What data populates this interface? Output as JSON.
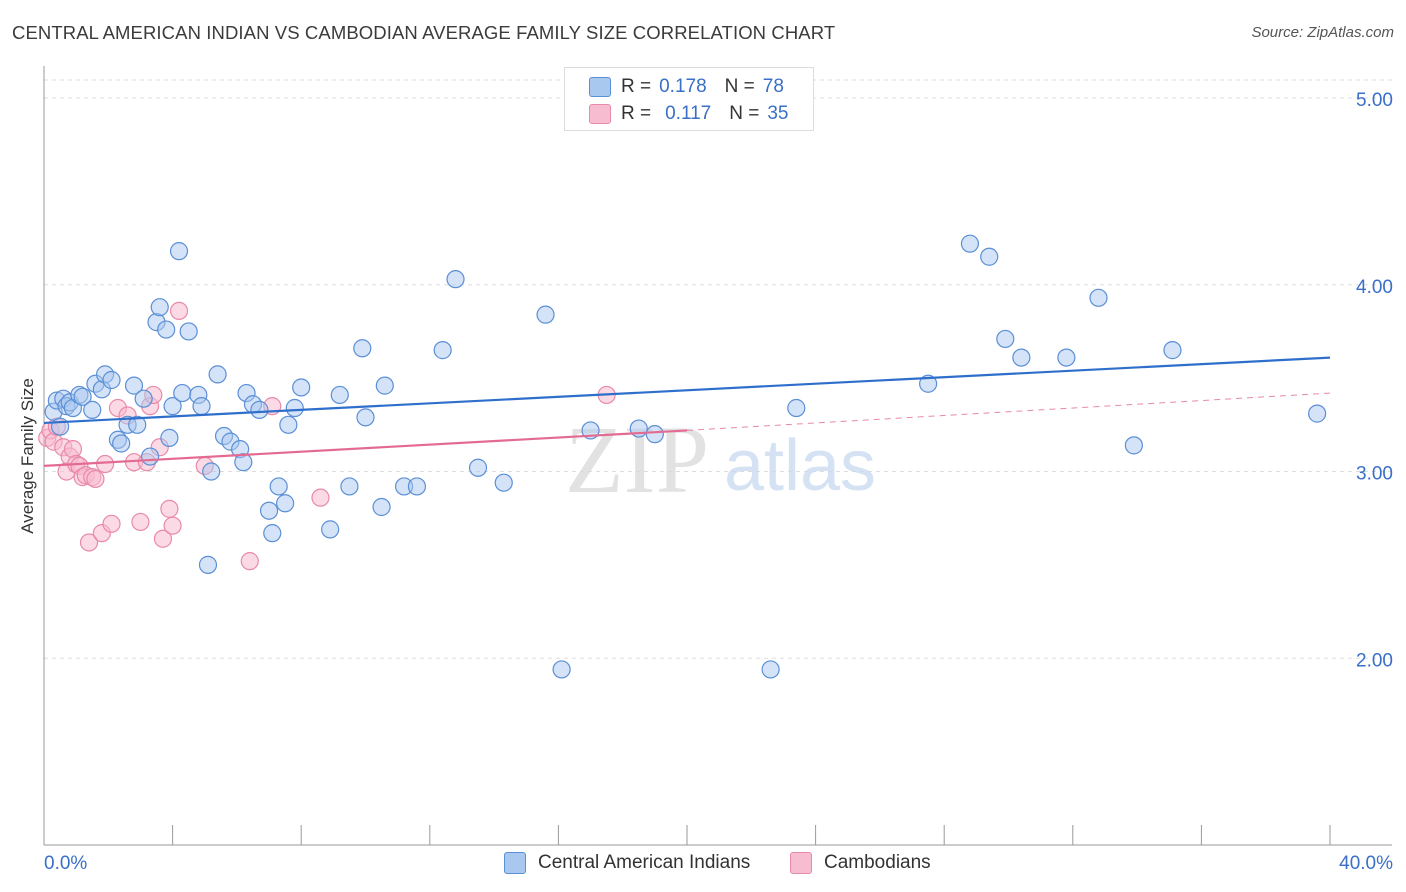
{
  "title": "CENTRAL AMERICAN INDIAN VS CAMBODIAN AVERAGE FAMILY SIZE CORRELATION CHART",
  "source": "Source: ZipAtlas.com",
  "watermark": {
    "zip": "ZIP",
    "atlas": "atlas"
  },
  "legend": {
    "series1": {
      "r_label": "R =",
      "r_value": "0.178",
      "n_label": "N =",
      "n_value": "78"
    },
    "series2": {
      "r_label": "R =",
      "r_value": "0.117",
      "n_label": "N =",
      "n_value": "35"
    }
  },
  "colors": {
    "blue_fill": "#a9c8f0",
    "blue_stroke": "#5b8fd6",
    "blue_line": "#2f6fcc",
    "pink_fill": "#f7bcd0",
    "pink_stroke": "#e88aa8",
    "pink_line": "#e36b92",
    "grid": "#dddddd",
    "tick_label": "#3a6fc7"
  },
  "chart_data": {
    "type": "scatter",
    "title": "CENTRAL AMERICAN INDIAN VS CAMBODIAN AVERAGE FAMILY SIZE CORRELATION CHART",
    "xlabel": "",
    "ylabel": "Average Family Size",
    "xlim": [
      0,
      40
    ],
    "ylim": [
      1.0,
      5.15
    ],
    "x_tick_labels": [
      "0.0%",
      "40.0%"
    ],
    "y_ticks": [
      2.0,
      3.0,
      4.0,
      5.0
    ],
    "y_tick_labels": [
      "2.00",
      "3.00",
      "4.00",
      "5.00"
    ],
    "legend_position": "top-center",
    "series": [
      {
        "name": "Central American Indians",
        "color": "#a9c8f0",
        "trend": {
          "x0": 0,
          "y0": 3.26,
          "x1": 40,
          "y1": 3.61
        },
        "points": [
          [
            0.3,
            3.32
          ],
          [
            0.4,
            3.38
          ],
          [
            0.5,
            3.24
          ],
          [
            0.6,
            3.39
          ],
          [
            0.7,
            3.35
          ],
          [
            0.8,
            3.37
          ],
          [
            0.9,
            3.34
          ],
          [
            1.1,
            3.41
          ],
          [
            1.2,
            3.4
          ],
          [
            1.5,
            3.33
          ],
          [
            1.6,
            3.47
          ],
          [
            1.8,
            3.44
          ],
          [
            1.9,
            3.52
          ],
          [
            2.1,
            3.49
          ],
          [
            2.3,
            3.17
          ],
          [
            2.4,
            3.15
          ],
          [
            2.6,
            3.25
          ],
          [
            2.8,
            3.46
          ],
          [
            2.9,
            3.25
          ],
          [
            3.1,
            3.39
          ],
          [
            3.3,
            3.08
          ],
          [
            3.5,
            3.8
          ],
          [
            3.6,
            3.88
          ],
          [
            3.8,
            3.76
          ],
          [
            3.9,
            3.18
          ],
          [
            4.0,
            3.35
          ],
          [
            4.2,
            4.18
          ],
          [
            4.3,
            3.42
          ],
          [
            4.5,
            3.75
          ],
          [
            4.8,
            3.41
          ],
          [
            4.9,
            3.35
          ],
          [
            5.1,
            2.5
          ],
          [
            5.2,
            3.0
          ],
          [
            5.4,
            3.52
          ],
          [
            5.6,
            3.19
          ],
          [
            5.8,
            3.16
          ],
          [
            6.1,
            3.12
          ],
          [
            6.2,
            3.05
          ],
          [
            6.3,
            3.42
          ],
          [
            6.5,
            3.36
          ],
          [
            6.7,
            3.33
          ],
          [
            7.0,
            2.79
          ],
          [
            7.1,
            2.67
          ],
          [
            7.3,
            2.92
          ],
          [
            7.5,
            2.83
          ],
          [
            7.6,
            3.25
          ],
          [
            7.8,
            3.34
          ],
          [
            8.0,
            3.45
          ],
          [
            8.9,
            2.69
          ],
          [
            9.2,
            3.41
          ],
          [
            9.5,
            2.92
          ],
          [
            9.9,
            3.66
          ],
          [
            10.0,
            3.29
          ],
          [
            10.5,
            2.81
          ],
          [
            10.6,
            3.46
          ],
          [
            11.2,
            2.92
          ],
          [
            11.6,
            2.92
          ],
          [
            12.4,
            3.65
          ],
          [
            12.8,
            4.03
          ],
          [
            13.5,
            3.02
          ],
          [
            14.3,
            2.94
          ],
          [
            15.6,
            3.84
          ],
          [
            16.1,
            1.94
          ],
          [
            17.0,
            3.22
          ],
          [
            19.0,
            3.2
          ],
          [
            22.6,
            1.94
          ],
          [
            23.4,
            3.34
          ],
          [
            27.5,
            3.47
          ],
          [
            28.8,
            4.22
          ],
          [
            29.4,
            4.15
          ],
          [
            29.9,
            3.71
          ],
          [
            30.4,
            3.61
          ],
          [
            31.8,
            3.61
          ],
          [
            32.8,
            3.93
          ],
          [
            33.9,
            3.14
          ],
          [
            35.1,
            3.65
          ],
          [
            39.6,
            3.31
          ],
          [
            18.5,
            3.23
          ]
        ]
      },
      {
        "name": "Cambodians",
        "color": "#f7bcd0",
        "trend": {
          "x0": 0,
          "y0": 3.03,
          "x1": 20,
          "y1": 3.22,
          "dash_x1": 40,
          "dash_y1": 3.42
        },
        "points": [
          [
            0.1,
            3.18
          ],
          [
            0.2,
            3.22
          ],
          [
            0.3,
            3.16
          ],
          [
            0.4,
            3.24
          ],
          [
            0.6,
            3.13
          ],
          [
            0.7,
            3.0
          ],
          [
            0.8,
            3.08
          ],
          [
            0.9,
            3.12
          ],
          [
            1.0,
            3.04
          ],
          [
            1.1,
            3.03
          ],
          [
            1.2,
            2.97
          ],
          [
            1.3,
            2.98
          ],
          [
            1.4,
            2.62
          ],
          [
            1.5,
            2.97
          ],
          [
            1.6,
            2.96
          ],
          [
            1.8,
            2.67
          ],
          [
            1.9,
            3.04
          ],
          [
            2.1,
            2.72
          ],
          [
            2.3,
            3.34
          ],
          [
            2.6,
            3.3
          ],
          [
            2.8,
            3.05
          ],
          [
            3.0,
            2.73
          ],
          [
            3.2,
            3.05
          ],
          [
            3.3,
            3.35
          ],
          [
            3.4,
            3.41
          ],
          [
            3.6,
            3.13
          ],
          [
            3.7,
            2.64
          ],
          [
            3.9,
            2.8
          ],
          [
            4.0,
            2.71
          ],
          [
            4.2,
            3.86
          ],
          [
            5.0,
            3.03
          ],
          [
            6.4,
            2.52
          ],
          [
            7.1,
            3.35
          ],
          [
            8.6,
            2.86
          ],
          [
            17.5,
            3.41
          ]
        ]
      }
    ]
  },
  "bottom_legend": {
    "series1": "Central American Indians",
    "series2": "Cambodians"
  }
}
